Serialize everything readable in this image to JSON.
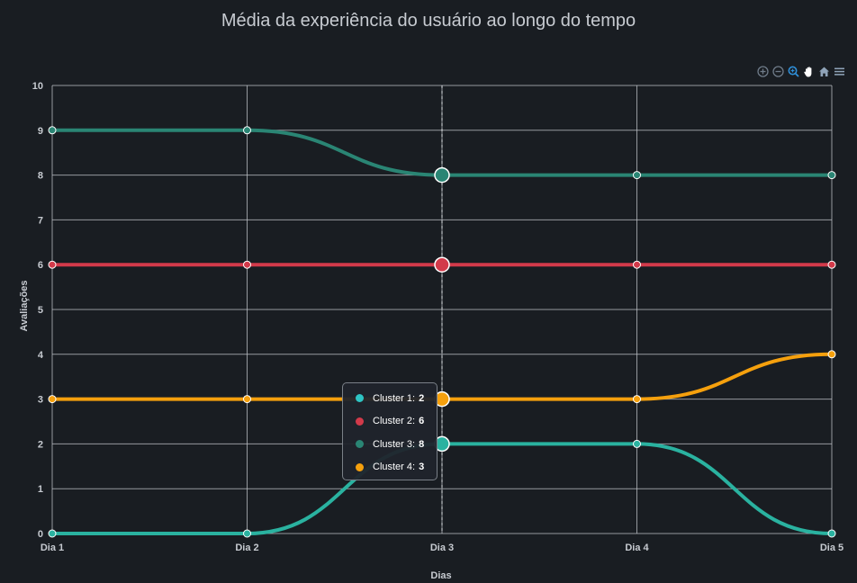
{
  "chart_data": {
    "type": "line",
    "title": "Média da experiência do usuário ao longo do tempo",
    "xlabel": "Dias",
    "ylabel": "Avaliações",
    "categories": [
      "Dia 1",
      "Dia 2",
      "Dia 3",
      "Dia 4",
      "Dia 5"
    ],
    "ylim": [
      0,
      10
    ],
    "yticks": [
      "0",
      "1",
      "2",
      "3",
      "4",
      "5",
      "6",
      "7",
      "8",
      "9",
      "10"
    ],
    "grid": true,
    "curve": "smooth",
    "series": [
      {
        "name": "Cluster 1",
        "color": "#2ab2a0",
        "values": [
          0,
          0,
          2,
          2,
          0
        ]
      },
      {
        "name": "Cluster 2",
        "color": "#d23a4a",
        "values": [
          6,
          6,
          6,
          6,
          6
        ]
      },
      {
        "name": "Cluster 3",
        "color": "#2a8574",
        "values": [
          9,
          9,
          8,
          8,
          8
        ]
      },
      {
        "name": "Cluster 4",
        "color": "#f5a00d",
        "values": [
          3,
          3,
          3,
          3,
          4
        ]
      }
    ],
    "hover_category": "Dia 3"
  },
  "tooltip": {
    "rows": [
      {
        "label": "Cluster 1:",
        "value": "2",
        "color": "#2ec4c4"
      },
      {
        "label": "Cluster 2:",
        "value": "6",
        "color": "#d23a4a"
      },
      {
        "label": "Cluster 3:",
        "value": "8",
        "color": "#2a8574"
      },
      {
        "label": "Cluster 4:",
        "value": "3",
        "color": "#f5a00d"
      }
    ]
  },
  "toolbar": {
    "icons": [
      "zoom-in-icon",
      "zoom-out-icon",
      "selection-zoom-icon",
      "pan-hand-icon",
      "home-reset-icon",
      "menu-icon"
    ]
  }
}
